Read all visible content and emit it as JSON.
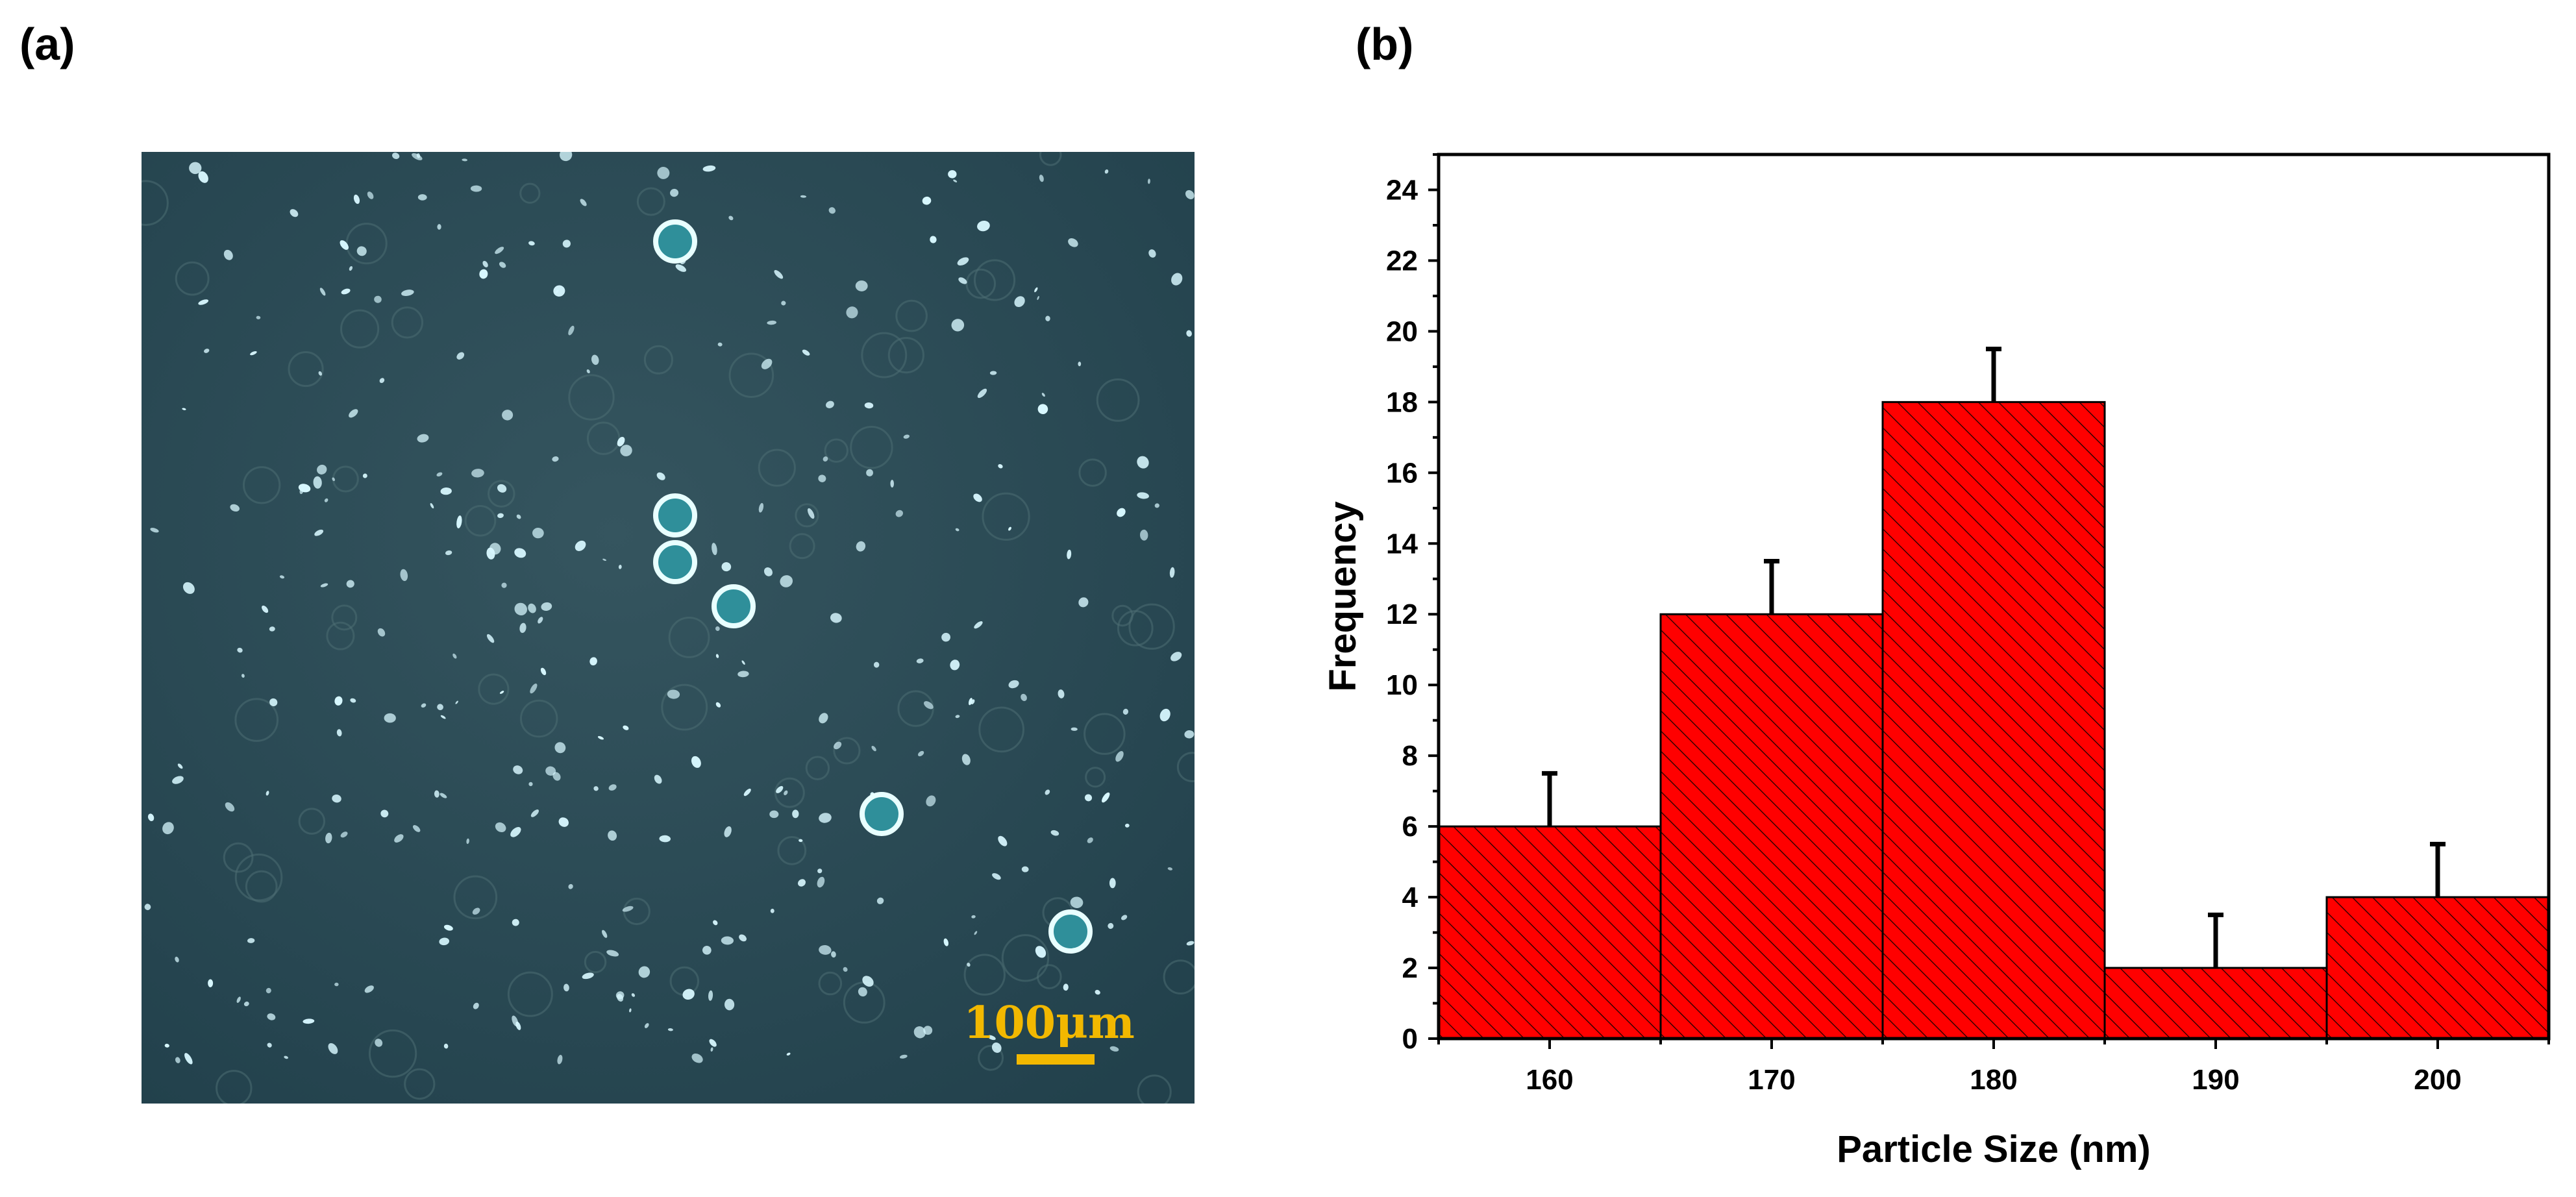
{
  "panels": {
    "a_label": "(a)",
    "b_label": "(b)"
  },
  "micrograph": {
    "scale_bar_text": "100μm",
    "background_color": "#2b4a55",
    "particle_color": "#d8f8ff",
    "scale_bar_color": "#f2b800"
  },
  "chart_data": {
    "type": "bar",
    "categories": [
      "160",
      "170",
      "180",
      "190",
      "200"
    ],
    "x": [
      160,
      170,
      180,
      190,
      200
    ],
    "values": [
      6,
      12,
      18,
      2,
      4
    ],
    "error_plus": [
      1.5,
      1.5,
      1.5,
      1.5,
      1.5
    ],
    "xlabel": "Particle Size (nm)",
    "ylabel": "Frequency",
    "xlim": [
      155,
      205
    ],
    "ylim": [
      0,
      25
    ],
    "yticks": [
      0,
      2,
      4,
      6,
      8,
      10,
      12,
      14,
      16,
      18,
      20,
      22,
      24
    ],
    "xticks": [
      160,
      170,
      180,
      190,
      200
    ],
    "bar_color": "#ff0000",
    "hatch": "diagonal",
    "grid": false
  }
}
